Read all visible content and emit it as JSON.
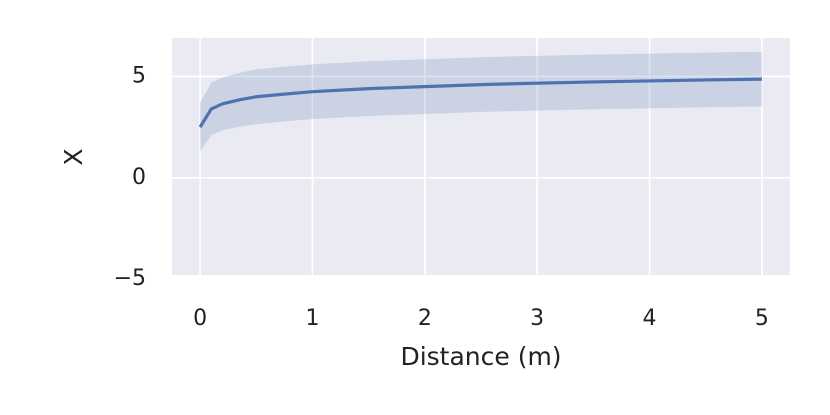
{
  "chart_data": {
    "type": "line",
    "xlabel": "Distance (m)",
    "ylabel": "X",
    "x": [
      0,
      0.1,
      0.2,
      0.35,
      0.5,
      0.75,
      1,
      1.5,
      2,
      2.5,
      3,
      3.5,
      4,
      4.5,
      5
    ],
    "series": [
      {
        "color": "#4c72b0",
        "values": [
          2.5,
          3.4,
          3.65,
          3.85,
          4.0,
          4.13,
          4.25,
          4.4,
          4.5,
          4.6,
          4.67,
          4.73,
          4.78,
          4.83,
          4.87
        ],
        "lower": [
          1.3,
          2.1,
          2.35,
          2.52,
          2.65,
          2.78,
          2.9,
          3.05,
          3.15,
          3.25,
          3.32,
          3.38,
          3.43,
          3.48,
          3.52
        ],
        "upper": [
          3.7,
          4.7,
          4.95,
          5.18,
          5.35,
          5.48,
          5.6,
          5.75,
          5.85,
          5.95,
          6.02,
          6.08,
          6.13,
          6.18,
          6.22
        ]
      }
    ],
    "xlim": [
      -0.25,
      5.25
    ],
    "ylim": [
      -4.8,
      6.9
    ],
    "xticks": [
      0,
      1,
      2,
      3,
      4,
      5
    ],
    "yticks": [
      {
        "value": -5,
        "label": "−5"
      },
      0,
      5
    ],
    "grid": true
  }
}
